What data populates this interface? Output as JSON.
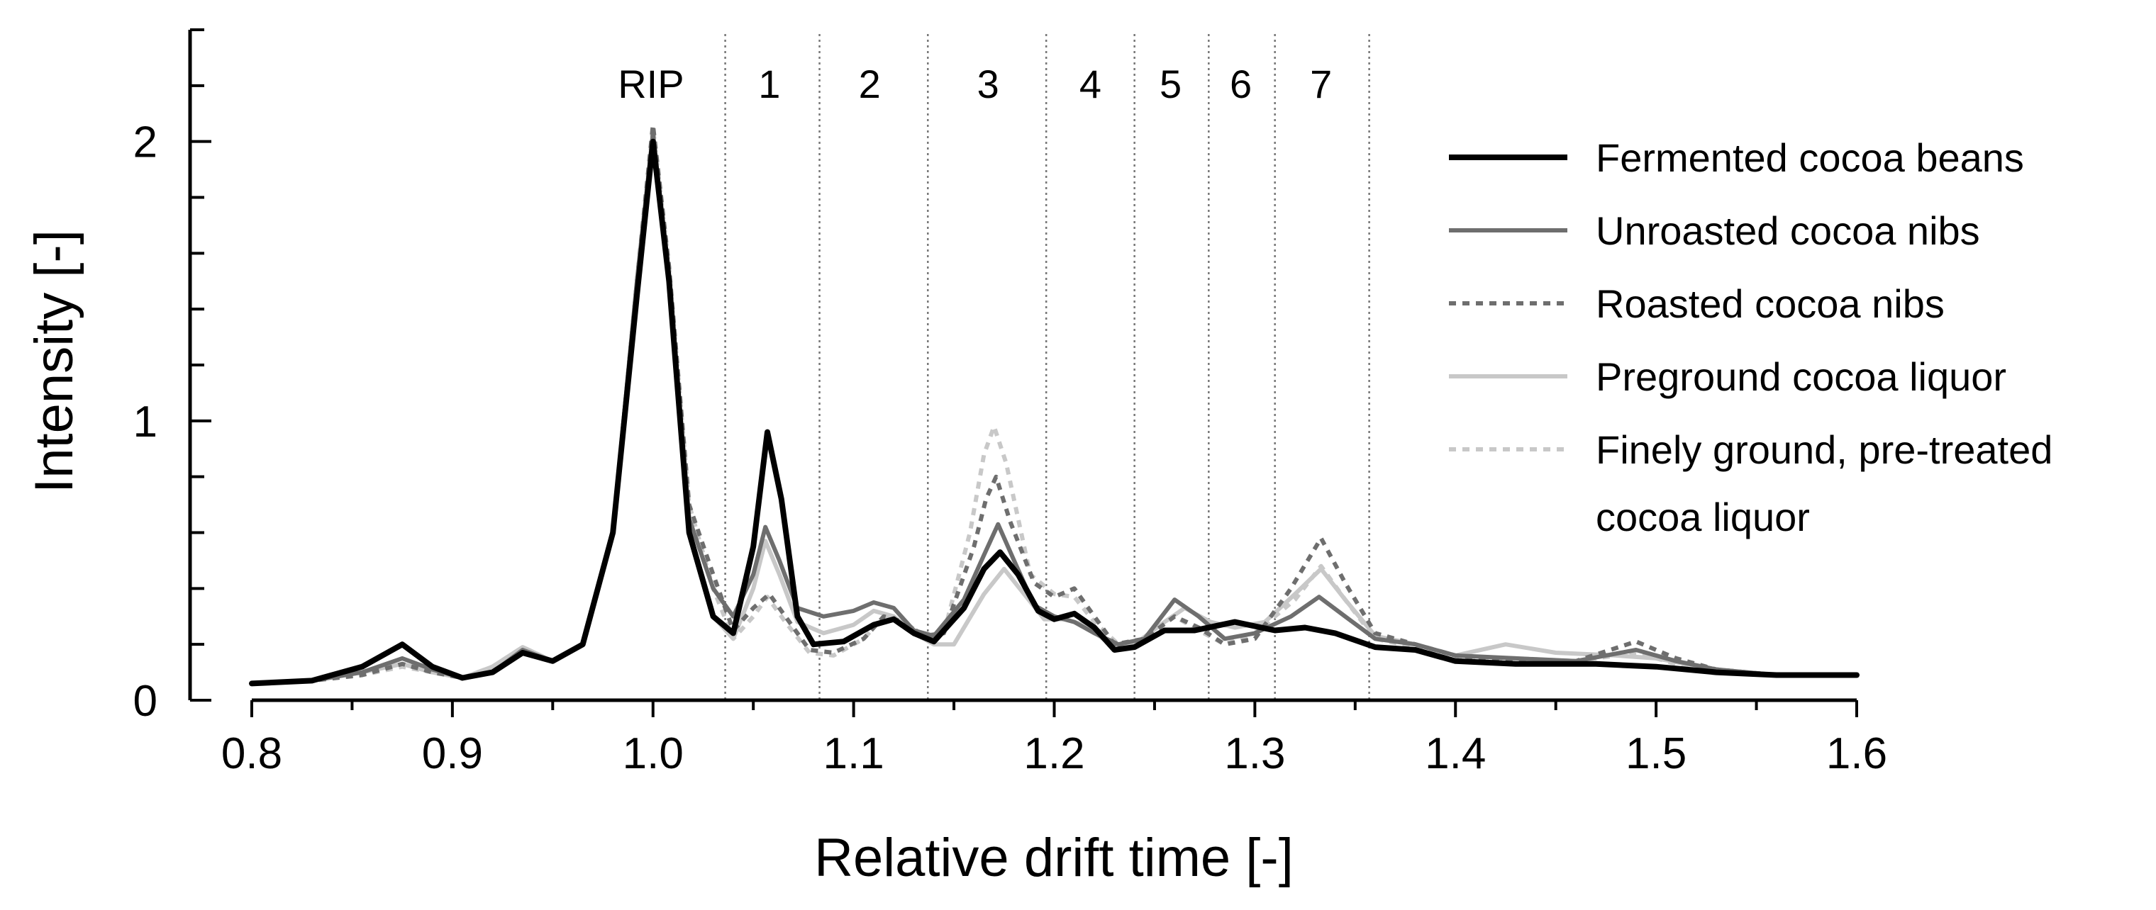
{
  "chart_data": {
    "type": "line",
    "xlabel": "Relative drift time [-]",
    "ylabel": "Intensity [-]",
    "xlim": [
      0.8,
      1.6
    ],
    "ylim": [
      0,
      2.4
    ],
    "x_ticks": [
      "0.8",
      "0.9",
      "1.0",
      "1.1",
      "1.2",
      "1.3",
      "1.4",
      "1.5",
      "1.6"
    ],
    "y_ticks": [
      "0",
      "1",
      "2"
    ],
    "y_minor_step": 0.2,
    "grid": false,
    "legend_position": "top-right",
    "regions": {
      "labels": [
        "RIP",
        "1",
        "2",
        "3",
        "4",
        "5",
        "6",
        "7"
      ],
      "label_x": [
        0.999,
        1.058,
        1.108,
        1.167,
        1.218,
        1.258,
        1.293,
        1.333
      ],
      "boundaries": [
        1.036,
        1.083,
        1.137,
        1.196,
        1.24,
        1.277,
        1.31,
        1.357
      ]
    },
    "series": [
      {
        "name": "Fermented cocoa beans",
        "color": "#000000",
        "dash": "solid",
        "points": [
          [
            0.8,
            0.06
          ],
          [
            0.83,
            0.07
          ],
          [
            0.855,
            0.12
          ],
          [
            0.875,
            0.2
          ],
          [
            0.89,
            0.12
          ],
          [
            0.905,
            0.08
          ],
          [
            0.92,
            0.1
          ],
          [
            0.935,
            0.17
          ],
          [
            0.95,
            0.14
          ],
          [
            0.965,
            0.2
          ],
          [
            0.98,
            0.6
          ],
          [
            0.992,
            1.45
          ],
          [
            1.0,
            2.0
          ],
          [
            1.008,
            1.5
          ],
          [
            1.018,
            0.6
          ],
          [
            1.03,
            0.3
          ],
          [
            1.04,
            0.24
          ],
          [
            1.05,
            0.55
          ],
          [
            1.057,
            0.96
          ],
          [
            1.064,
            0.72
          ],
          [
            1.072,
            0.3
          ],
          [
            1.08,
            0.2
          ],
          [
            1.095,
            0.21
          ],
          [
            1.11,
            0.27
          ],
          [
            1.12,
            0.29
          ],
          [
            1.13,
            0.24
          ],
          [
            1.14,
            0.21
          ],
          [
            1.155,
            0.33
          ],
          [
            1.165,
            0.47
          ],
          [
            1.173,
            0.53
          ],
          [
            1.182,
            0.45
          ],
          [
            1.192,
            0.32
          ],
          [
            1.2,
            0.29
          ],
          [
            1.21,
            0.31
          ],
          [
            1.22,
            0.26
          ],
          [
            1.23,
            0.18
          ],
          [
            1.24,
            0.19
          ],
          [
            1.255,
            0.25
          ],
          [
            1.27,
            0.25
          ],
          [
            1.29,
            0.28
          ],
          [
            1.31,
            0.25
          ],
          [
            1.325,
            0.26
          ],
          [
            1.34,
            0.24
          ],
          [
            1.36,
            0.19
          ],
          [
            1.38,
            0.18
          ],
          [
            1.4,
            0.14
          ],
          [
            1.43,
            0.13
          ],
          [
            1.47,
            0.13
          ],
          [
            1.5,
            0.12
          ],
          [
            1.53,
            0.1
          ],
          [
            1.56,
            0.09
          ],
          [
            1.6,
            0.09
          ]
        ]
      },
      {
        "name": "Unroasted cocoa nibs",
        "color": "#6e6e6e",
        "dash": "solid",
        "points": [
          [
            0.8,
            0.06
          ],
          [
            0.83,
            0.07
          ],
          [
            0.855,
            0.1
          ],
          [
            0.875,
            0.15
          ],
          [
            0.89,
            0.11
          ],
          [
            0.905,
            0.08
          ],
          [
            0.92,
            0.1
          ],
          [
            0.935,
            0.18
          ],
          [
            0.95,
            0.14
          ],
          [
            0.965,
            0.2
          ],
          [
            0.98,
            0.6
          ],
          [
            0.992,
            1.5
          ],
          [
            1.0,
            2.03
          ],
          [
            1.008,
            1.5
          ],
          [
            1.018,
            0.65
          ],
          [
            1.03,
            0.4
          ],
          [
            1.04,
            0.3
          ],
          [
            1.05,
            0.45
          ],
          [
            1.056,
            0.62
          ],
          [
            1.063,
            0.5
          ],
          [
            1.072,
            0.33
          ],
          [
            1.085,
            0.3
          ],
          [
            1.1,
            0.32
          ],
          [
            1.11,
            0.35
          ],
          [
            1.12,
            0.33
          ],
          [
            1.13,
            0.25
          ],
          [
            1.14,
            0.23
          ],
          [
            1.155,
            0.36
          ],
          [
            1.165,
            0.52
          ],
          [
            1.172,
            0.63
          ],
          [
            1.18,
            0.5
          ],
          [
            1.19,
            0.34
          ],
          [
            1.2,
            0.3
          ],
          [
            1.21,
            0.28
          ],
          [
            1.22,
            0.24
          ],
          [
            1.232,
            0.2
          ],
          [
            1.245,
            0.22
          ],
          [
            1.26,
            0.36
          ],
          [
            1.272,
            0.3
          ],
          [
            1.285,
            0.22
          ],
          [
            1.3,
            0.24
          ],
          [
            1.318,
            0.3
          ],
          [
            1.332,
            0.37
          ],
          [
            1.345,
            0.3
          ],
          [
            1.36,
            0.22
          ],
          [
            1.38,
            0.2
          ],
          [
            1.4,
            0.16
          ],
          [
            1.43,
            0.15
          ],
          [
            1.46,
            0.14
          ],
          [
            1.49,
            0.18
          ],
          [
            1.51,
            0.14
          ],
          [
            1.53,
            0.11
          ],
          [
            1.56,
            0.09
          ],
          [
            1.6,
            0.09
          ]
        ]
      },
      {
        "name": "Roasted cocoa nibs",
        "color": "#6e6e6e",
        "dash": "dotted",
        "points": [
          [
            0.8,
            0.06
          ],
          [
            0.83,
            0.07
          ],
          [
            0.855,
            0.09
          ],
          [
            0.875,
            0.13
          ],
          [
            0.89,
            0.1
          ],
          [
            0.905,
            0.08
          ],
          [
            0.92,
            0.1
          ],
          [
            0.935,
            0.17
          ],
          [
            0.95,
            0.14
          ],
          [
            0.965,
            0.2
          ],
          [
            0.98,
            0.6
          ],
          [
            0.992,
            1.5
          ],
          [
            1.0,
            2.06
          ],
          [
            1.008,
            1.55
          ],
          [
            1.018,
            0.7
          ],
          [
            1.03,
            0.45
          ],
          [
            1.04,
            0.25
          ],
          [
            1.05,
            0.33
          ],
          [
            1.058,
            0.38
          ],
          [
            1.066,
            0.3
          ],
          [
            1.078,
            0.18
          ],
          [
            1.09,
            0.17
          ],
          [
            1.105,
            0.22
          ],
          [
            1.115,
            0.3
          ],
          [
            1.125,
            0.28
          ],
          [
            1.135,
            0.23
          ],
          [
            1.145,
            0.24
          ],
          [
            1.16,
            0.55
          ],
          [
            1.166,
            0.72
          ],
          [
            1.171,
            0.8
          ],
          [
            1.178,
            0.64
          ],
          [
            1.19,
            0.42
          ],
          [
            1.2,
            0.37
          ],
          [
            1.21,
            0.4
          ],
          [
            1.22,
            0.3
          ],
          [
            1.23,
            0.2
          ],
          [
            1.245,
            0.22
          ],
          [
            1.26,
            0.3
          ],
          [
            1.272,
            0.26
          ],
          [
            1.285,
            0.2
          ],
          [
            1.3,
            0.22
          ],
          [
            1.318,
            0.4
          ],
          [
            1.333,
            0.58
          ],
          [
            1.345,
            0.42
          ],
          [
            1.36,
            0.24
          ],
          [
            1.38,
            0.2
          ],
          [
            1.4,
            0.16
          ],
          [
            1.43,
            0.14
          ],
          [
            1.46,
            0.14
          ],
          [
            1.49,
            0.21
          ],
          [
            1.51,
            0.15
          ],
          [
            1.53,
            0.11
          ],
          [
            1.56,
            0.09
          ],
          [
            1.6,
            0.09
          ]
        ]
      },
      {
        "name": "Preground cocoa liquor",
        "color": "#c8c8c8",
        "dash": "solid",
        "points": [
          [
            0.8,
            0.06
          ],
          [
            0.83,
            0.07
          ],
          [
            0.855,
            0.1
          ],
          [
            0.875,
            0.13
          ],
          [
            0.89,
            0.1
          ],
          [
            0.905,
            0.08
          ],
          [
            0.92,
            0.12
          ],
          [
            0.935,
            0.19
          ],
          [
            0.95,
            0.14
          ],
          [
            0.965,
            0.2
          ],
          [
            0.98,
            0.6
          ],
          [
            0.992,
            1.5
          ],
          [
            1.0,
            2.02
          ],
          [
            1.008,
            1.5
          ],
          [
            1.018,
            0.6
          ],
          [
            1.03,
            0.3
          ],
          [
            1.04,
            0.22
          ],
          [
            1.05,
            0.4
          ],
          [
            1.056,
            0.57
          ],
          [
            1.063,
            0.45
          ],
          [
            1.072,
            0.28
          ],
          [
            1.085,
            0.24
          ],
          [
            1.1,
            0.27
          ],
          [
            1.11,
            0.32
          ],
          [
            1.12,
            0.3
          ],
          [
            1.13,
            0.24
          ],
          [
            1.14,
            0.2
          ],
          [
            1.15,
            0.2
          ],
          [
            1.165,
            0.38
          ],
          [
            1.175,
            0.47
          ],
          [
            1.185,
            0.38
          ],
          [
            1.195,
            0.29
          ],
          [
            1.205,
            0.29
          ],
          [
            1.215,
            0.27
          ],
          [
            1.228,
            0.2
          ],
          [
            1.24,
            0.2
          ],
          [
            1.255,
            0.28
          ],
          [
            1.265,
            0.33
          ],
          [
            1.278,
            0.28
          ],
          [
            1.29,
            0.26
          ],
          [
            1.305,
            0.28
          ],
          [
            1.32,
            0.38
          ],
          [
            1.333,
            0.47
          ],
          [
            1.345,
            0.36
          ],
          [
            1.36,
            0.23
          ],
          [
            1.38,
            0.2
          ],
          [
            1.4,
            0.16
          ],
          [
            1.425,
            0.2
          ],
          [
            1.45,
            0.17
          ],
          [
            1.48,
            0.16
          ],
          [
            1.5,
            0.15
          ],
          [
            1.53,
            0.11
          ],
          [
            1.56,
            0.09
          ],
          [
            1.6,
            0.09
          ]
        ]
      },
      {
        "name": "Finely ground, pre-treated cocoa liquor",
        "color": "#c8c8c8",
        "dash": "dotted",
        "points": [
          [
            0.8,
            0.06
          ],
          [
            0.83,
            0.07
          ],
          [
            0.855,
            0.09
          ],
          [
            0.875,
            0.12
          ],
          [
            0.89,
            0.1
          ],
          [
            0.905,
            0.08
          ],
          [
            0.92,
            0.12
          ],
          [
            0.935,
            0.19
          ],
          [
            0.95,
            0.14
          ],
          [
            0.965,
            0.2
          ],
          [
            0.98,
            0.6
          ],
          [
            0.992,
            1.5
          ],
          [
            1.0,
            2.05
          ],
          [
            1.008,
            1.55
          ],
          [
            1.018,
            0.7
          ],
          [
            1.03,
            0.4
          ],
          [
            1.04,
            0.22
          ],
          [
            1.05,
            0.3
          ],
          [
            1.057,
            0.37
          ],
          [
            1.066,
            0.28
          ],
          [
            1.078,
            0.17
          ],
          [
            1.09,
            0.16
          ],
          [
            1.105,
            0.22
          ],
          [
            1.115,
            0.3
          ],
          [
            1.125,
            0.28
          ],
          [
            1.135,
            0.23
          ],
          [
            1.145,
            0.24
          ],
          [
            1.158,
            0.6
          ],
          [
            1.165,
            0.88
          ],
          [
            1.17,
            0.98
          ],
          [
            1.176,
            0.85
          ],
          [
            1.188,
            0.45
          ],
          [
            1.2,
            0.38
          ],
          [
            1.21,
            0.37
          ],
          [
            1.22,
            0.28
          ],
          [
            1.232,
            0.2
          ],
          [
            1.245,
            0.22
          ],
          [
            1.26,
            0.3
          ],
          [
            1.272,
            0.25
          ],
          [
            1.285,
            0.2
          ],
          [
            1.3,
            0.24
          ],
          [
            1.32,
            0.36
          ],
          [
            1.333,
            0.48
          ],
          [
            1.345,
            0.36
          ],
          [
            1.36,
            0.22
          ],
          [
            1.38,
            0.19
          ],
          [
            1.4,
            0.15
          ],
          [
            1.43,
            0.15
          ],
          [
            1.46,
            0.14
          ],
          [
            1.49,
            0.17
          ],
          [
            1.51,
            0.13
          ],
          [
            1.53,
            0.1
          ],
          [
            1.56,
            0.09
          ],
          [
            1.6,
            0.09
          ]
        ]
      }
    ]
  }
}
